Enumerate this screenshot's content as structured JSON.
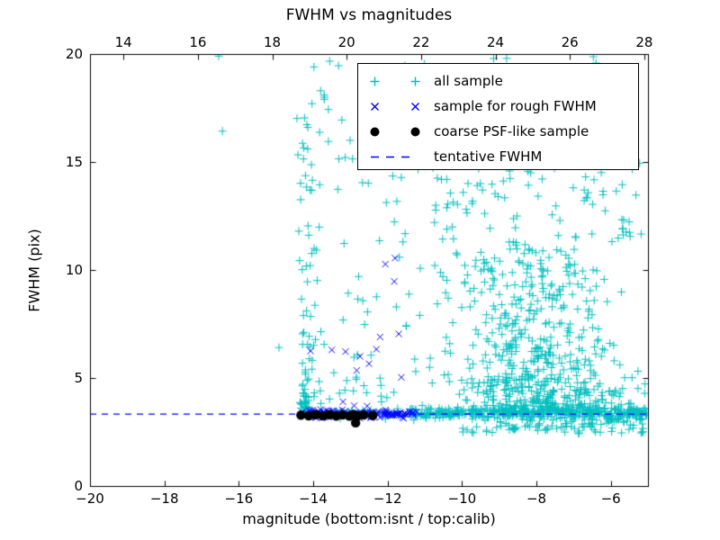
{
  "title": "FWHM vs magnitudes",
  "xlabel": "magnitude (bottom:isnt / top:calib)",
  "ylabel": "FWHM (pix)",
  "colors": {
    "all_sample": "#00bfbf",
    "rough_sample": "#0000ff",
    "psf_sample": "#000000",
    "tentative_line": "#0000ff",
    "axis": "#000000",
    "background": "#ffffff"
  },
  "axes": {
    "x_bottom": {
      "min": -20,
      "max": -5,
      "ticks": [
        -20,
        -18,
        -16,
        -14,
        -12,
        -10,
        -8,
        -6
      ],
      "tick_labels": [
        "−20",
        "−18",
        "−16",
        "−14",
        "−12",
        "−10",
        "−8",
        "−6"
      ]
    },
    "x_top": {
      "min": 13.1,
      "max": 28.1,
      "ticks": [
        14,
        16,
        18,
        20,
        22,
        24,
        26,
        28
      ],
      "tick_labels": [
        "14",
        "16",
        "18",
        "20",
        "22",
        "24",
        "26",
        "28"
      ]
    },
    "y": {
      "min": 0,
      "max": 20,
      "ticks": [
        0,
        5,
        10,
        15,
        20
      ],
      "tick_labels": [
        "0",
        "5",
        "10",
        "15",
        "20"
      ]
    }
  },
  "legend": {
    "items": [
      {
        "label": "all sample",
        "marker": "plus",
        "color": "#00bfbf"
      },
      {
        "label": "sample for rough FWHM",
        "marker": "x",
        "color": "#0000ff"
      },
      {
        "label": "coarse PSF-like sample",
        "marker": "dot",
        "color": "#000000"
      },
      {
        "label": "tentative FWHM",
        "marker": "dash",
        "color": "#0000ff"
      }
    ]
  },
  "chart_data": {
    "type": "scatter",
    "title": "FWHM vs magnitudes",
    "xlabel": "magnitude (bottom:isnt / top:calib)",
    "ylabel": "FWHM (pix)",
    "xlim": [
      -20,
      -5
    ],
    "ylim": [
      0,
      20
    ],
    "grid": false,
    "legend_position": "upper right",
    "random_seed": 1337,
    "series": [
      {
        "name": "all sample",
        "marker": "+",
        "color": "#00bfbf",
        "points": [
          [
            -16.54,
            19.9
          ],
          [
            -16.44,
            16.43
          ],
          [
            -14.92,
            6.41
          ],
          [
            -8.8,
            19.8
          ],
          [
            -13.98,
            19.4
          ],
          [
            -13.8,
            18.3
          ],
          [
            -13.7,
            17.9
          ]
        ],
        "clusters": [
          {
            "n": 60,
            "x": {
              "d": "u",
              "lo": -14.32,
              "hi": -11.5
            },
            "y": {
              "d": "g",
              "mu": 3.35,
              "sd": 0.1,
              "lo": 3.0,
              "hi": 3.7
            }
          },
          {
            "n": 330,
            "x": {
              "d": "u",
              "lo": -11.5,
              "hi": -5.03
            },
            "y": {
              "d": "g",
              "mu": 3.35,
              "sd": 0.13,
              "lo": 2.9,
              "hi": 3.8
            }
          },
          {
            "n": 80,
            "x": {
              "d": "u",
              "lo": -10.0,
              "hi": -5.05
            },
            "y": {
              "d": "u",
              "lo": 2.45,
              "hi": 3.1
            }
          },
          {
            "n": 55,
            "x": {
              "d": "g",
              "mu": -14.22,
              "sd": 0.07,
              "lo": -14.45,
              "hi": -14.02
            },
            "y": {
              "d": "p",
              "lo": 3.6,
              "hi": 19.6,
              "exp": 2.2
            }
          },
          {
            "n": 110,
            "x": {
              "d": "u",
              "lo": -14.45,
              "hi": -10.3
            },
            "y": {
              "d": "u",
              "lo": 3.8,
              "hi": 19.8
            }
          },
          {
            "n": 18,
            "x": {
              "d": "u",
              "lo": -14.05,
              "hi": -11.5
            },
            "y": {
              "d": "u",
              "lo": 3.9,
              "hi": 5.3
            }
          },
          {
            "n": 450,
            "x": {
              "d": "g",
              "mu": -8.2,
              "sd": 1.0,
              "lo": -10.7,
              "hi": -5.15
            },
            "y": {
              "d": "p",
              "lo": 3.45,
              "hi": 8.4,
              "exp": 1.7
            }
          },
          {
            "n": 130,
            "x": {
              "d": "g",
              "mu": -8.4,
              "sd": 1.15,
              "lo": -10.8,
              "hi": -5.2
            },
            "y": {
              "d": "u",
              "lo": 8.2,
              "hi": 11.3
            }
          },
          {
            "n": 85,
            "x": {
              "d": "u",
              "lo": -10.8,
              "hi": -5.1
            },
            "y": {
              "d": "u",
              "lo": 11.3,
              "hi": 15.2
            }
          },
          {
            "n": 24,
            "x": {
              "d": "u",
              "lo": -10.5,
              "hi": -5.1
            },
            "y": {
              "d": "u",
              "lo": 15.2,
              "hi": 19.9
            }
          },
          {
            "n": 80,
            "x": {
              "d": "u",
              "lo": -6.9,
              "hi": -5.03
            },
            "y": {
              "d": "g",
              "mu": 3.7,
              "sd": 0.7,
              "lo": 2.4,
              "hi": 5.3
            }
          }
        ]
      },
      {
        "name": "sample for rough FWHM",
        "marker": "x",
        "color": "#0000ff",
        "points": [
          [
            -14.07,
            6.25
          ],
          [
            -13.5,
            6.3
          ],
          [
            -13.13,
            6.22
          ],
          [
            -12.74,
            6.0
          ],
          [
            -12.5,
            5.66
          ],
          [
            -12.83,
            5.35
          ],
          [
            -12.3,
            6.33
          ],
          [
            -12.2,
            6.9
          ],
          [
            -11.7,
            7.04
          ],
          [
            -12.06,
            10.27
          ],
          [
            -11.8,
            10.55
          ],
          [
            -11.82,
            9.47
          ],
          [
            -11.63,
            5.03
          ],
          [
            -13.2,
            3.9
          ],
          [
            -12.9,
            3.72
          ],
          [
            -12.55,
            3.7
          ]
        ],
        "clusters": [
          {
            "n": 150,
            "x": {
              "d": "u",
              "lo": -14.3,
              "hi": -11.2
            },
            "y": {
              "d": "g",
              "mu": 3.33,
              "sd": 0.09,
              "lo": 3.05,
              "hi": 3.75
            }
          }
        ]
      },
      {
        "name": "coarse PSF-like sample",
        "marker": "dot",
        "color": "#000000",
        "points": [
          [
            -14.33,
            3.28
          ],
          [
            -14.12,
            3.25
          ],
          [
            -13.93,
            3.3
          ],
          [
            -13.74,
            3.25
          ],
          [
            -13.56,
            3.3
          ],
          [
            -13.38,
            3.24
          ],
          [
            -13.21,
            3.29
          ],
          [
            -13.03,
            3.24
          ],
          [
            -12.92,
            3.3
          ],
          [
            -12.8,
            3.25
          ],
          [
            -12.65,
            3.29
          ],
          [
            -12.4,
            3.26
          ],
          [
            -12.86,
            2.92
          ]
        ]
      },
      {
        "name": "tentative FWHM",
        "type": "hline",
        "y": 3.35,
        "style": "dashed",
        "color": "#0000ff"
      }
    ]
  }
}
